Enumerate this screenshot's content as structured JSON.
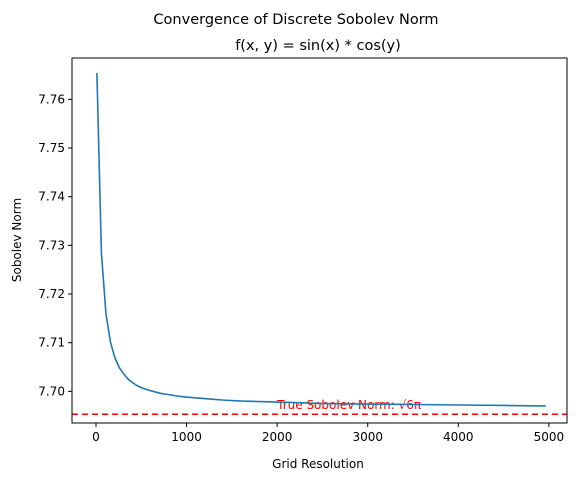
{
  "chart_data": {
    "type": "line",
    "title": "Convergence of Discrete Sobolev Norm",
    "subtitle": "f(x, y) = sin(x) * cos(y)",
    "xlabel": "Grid Resolution",
    "ylabel": "Sobolev Norm",
    "xlim": [
      -265,
      5200
    ],
    "ylim": [
      7.6935,
      7.7685
    ],
    "xticks": [
      0,
      1000,
      2000,
      3000,
      4000,
      5000
    ],
    "yticks": [
      7.7,
      7.71,
      7.72,
      7.73,
      7.74,
      7.75,
      7.76
    ],
    "grid": false,
    "series": [
      {
        "color": "#1f77b4",
        "x": [
          10,
          60,
          110,
          160,
          210,
          260,
          310,
          360,
          410,
          460,
          510,
          610,
          710,
          810,
          910,
          1010,
          1210,
          1410,
          1610,
          1810,
          2010,
          2510,
          3010,
          3510,
          4010,
          4510,
          4960
        ],
        "y": [
          7.7653,
          7.7283,
          7.7159,
          7.7101,
          7.7068,
          7.7048,
          7.7035,
          7.7024,
          7.7017,
          7.7011,
          7.7007,
          7.7001,
          7.6996,
          7.6993,
          7.699,
          7.6988,
          7.6985,
          7.6982,
          7.698,
          7.6979,
          7.6978,
          7.6975,
          7.6974,
          7.6973,
          7.6972,
          7.6971,
          7.697
        ]
      }
    ],
    "reference_line": {
      "y": 7.6953,
      "color": "#ff0000",
      "style": "dashed",
      "label": "True Sobolev Norm: √6π",
      "label_x": 2000
    }
  }
}
